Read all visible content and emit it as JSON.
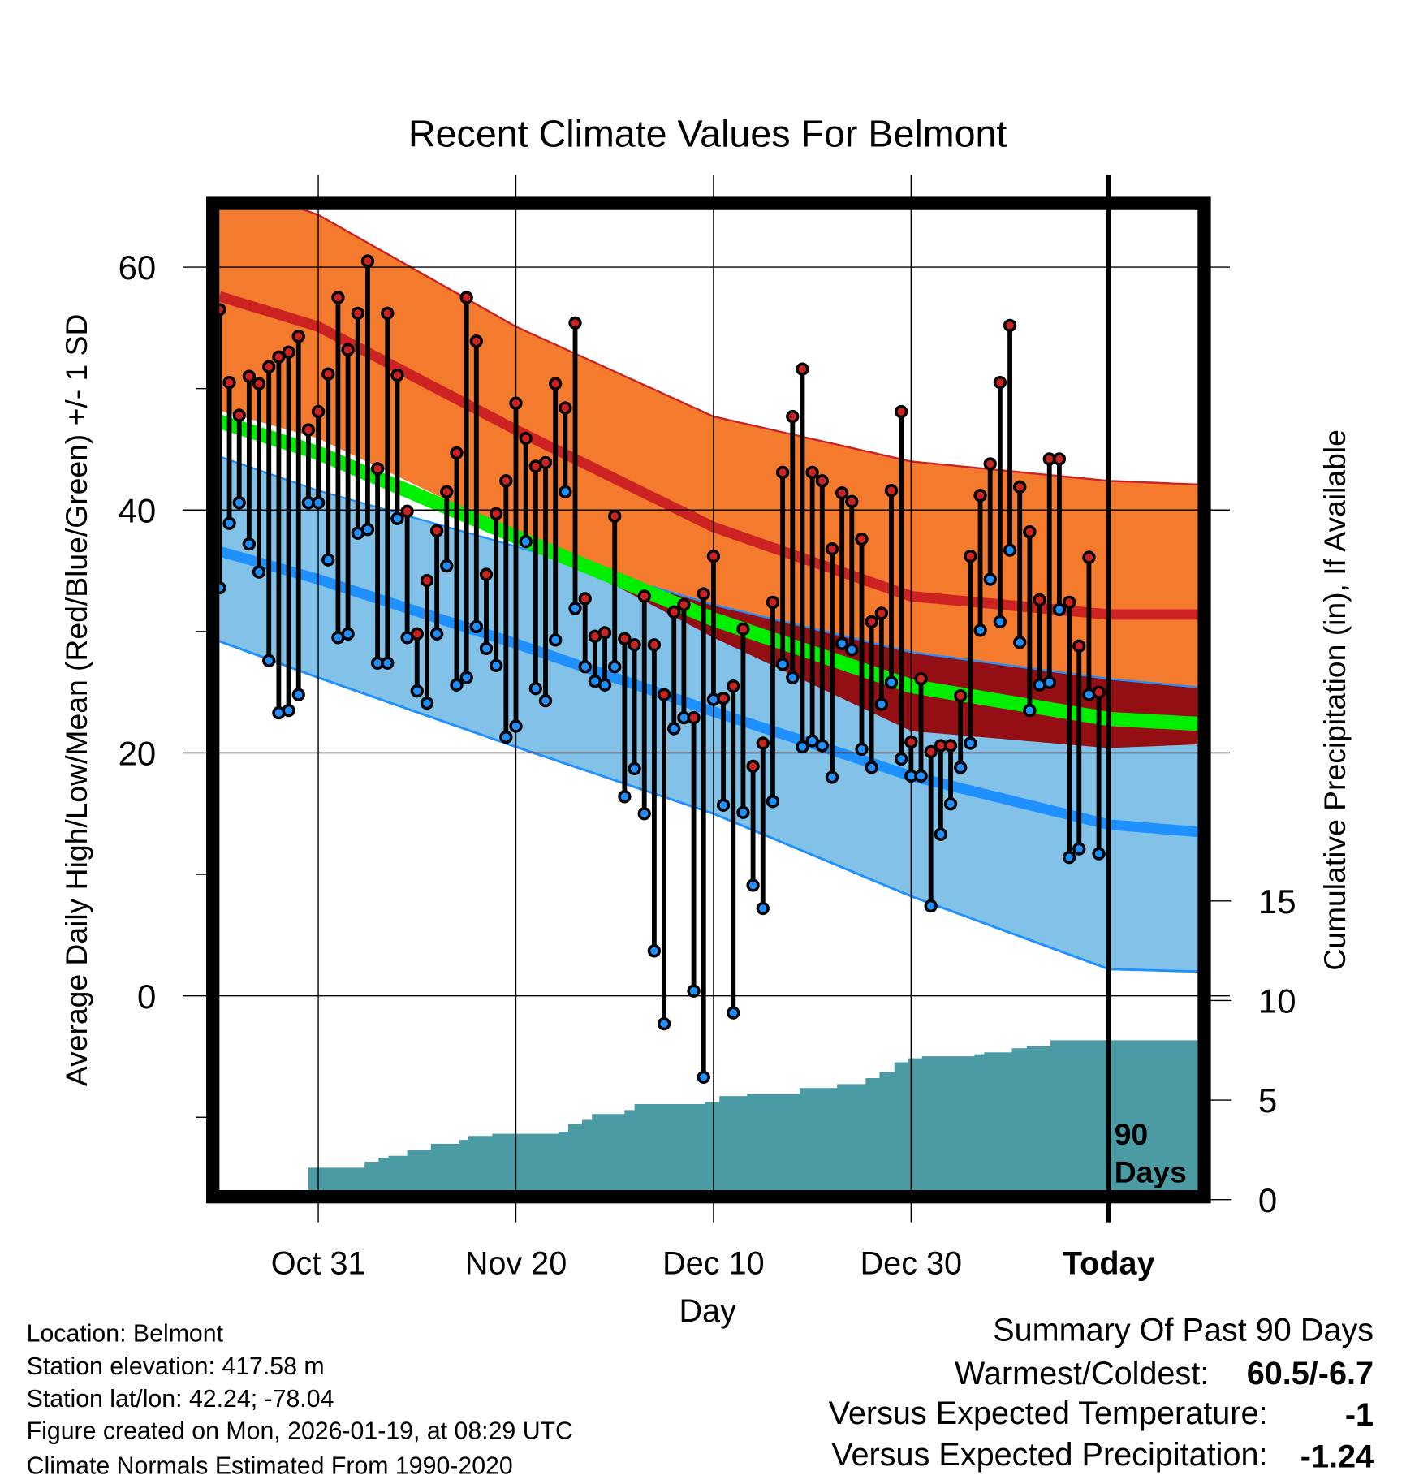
{
  "chart_data": {
    "type": "line",
    "title": "Recent Climate Values For Belmont",
    "xlabel": "Day",
    "ylabel": "Average Daily High/Low/Mean (Red/Blue/Green) +/- 1 SD",
    "y2label": "Cumulative Precipitation (in), If Available",
    "x_units": "days relative to today",
    "xlim": [
      -90,
      9
    ],
    "ylim": [
      -16.0,
      64.7
    ],
    "grid": true,
    "x_ticks": [
      {
        "value": -80,
        "label": "Oct 31"
      },
      {
        "value": -60,
        "label": "Nov 20"
      },
      {
        "value": -40,
        "label": "Dec 10"
      },
      {
        "value": -20,
        "label": "Dec 30"
      },
      {
        "value": 0,
        "label": "Today"
      }
    ],
    "y_ticks": [
      60,
      40,
      20,
      0
    ],
    "y_minor_ticks": [
      50,
      30,
      10,
      -10
    ],
    "precip_axis": {
      "ylim": [
        0,
        49.7
      ],
      "ticks": [
        15,
        10,
        5,
        0
      ]
    },
    "today_annotation": [
      "90",
      "Days"
    ],
    "colors": {
      "high_band": "#f47a2e",
      "high_mean": "#cc2222",
      "overlap": "#930f14",
      "mean": "#00ee00",
      "low_band": "#82c1e8",
      "low_mean": "#1e90ff",
      "precip": "#4a9ba3",
      "high_point": "#cc2222",
      "low_point": "#1e90ff"
    },
    "normals": {
      "x": [
        -90,
        -80,
        -60,
        -40,
        -20,
        0,
        9
      ],
      "high_plus_sd": [
        67.2,
        64.3,
        55.1,
        47.7,
        44.0,
        42.4,
        42.1
      ],
      "high_mean": [
        57.6,
        55.1,
        46.6,
        38.6,
        32.9,
        31.4,
        31.4
      ],
      "high_minus_sd": [
        48.2,
        45.9,
        38.1,
        29.5,
        21.8,
        20.4,
        20.7
      ],
      "mean": [
        47.3,
        44.7,
        37.8,
        31.0,
        25.5,
        22.8,
        22.4
      ],
      "low_plus_sd": [
        44.4,
        41.6,
        37.0,
        32.2,
        28.3,
        26.1,
        25.4
      ],
      "low_mean": [
        36.6,
        34.3,
        29.0,
        23.4,
        18.1,
        14.1,
        13.5
      ],
      "low_minus_sd": [
        29.2,
        26.2,
        20.5,
        15.0,
        8.2,
        2.2,
        2.0
      ]
    },
    "daily": {
      "x_start": -90,
      "highs": [
        56.5,
        50.5,
        47.8,
        51.0,
        50.4,
        51.8,
        52.6,
        53.0,
        54.3,
        46.6,
        48.1,
        51.2,
        57.5,
        53.2,
        56.2,
        60.5,
        43.4,
        56.2,
        51.1,
        39.9,
        29.8,
        34.2,
        38.3,
        41.5,
        44.7,
        57.5,
        53.9,
        34.7,
        39.7,
        42.4,
        48.8,
        45.9,
        43.6,
        43.9,
        50.4,
        48.4,
        55.4,
        32.7,
        29.6,
        29.9,
        39.5,
        29.4,
        28.9,
        32.9,
        28.9,
        24.8,
        31.6,
        32.2,
        22.9,
        33.1,
        36.2,
        24.5,
        25.5,
        30.2,
        18.9,
        20.8,
        32.4,
        43.1,
        47.7,
        51.6,
        43.1,
        42.4,
        36.8,
        41.4,
        40.7,
        37.6,
        30.8,
        31.5,
        41.6,
        48.1,
        20.9,
        26.1,
        20.1,
        20.6,
        20.6,
        24.7,
        36.2,
        41.2,
        43.8,
        50.5,
        55.2,
        41.9,
        38.2,
        32.6,
        44.2,
        44.2,
        32.4,
        28.8,
        36.1,
        25.0
      ],
      "lows": [
        33.6,
        38.9,
        40.6,
        37.2,
        34.9,
        27.6,
        23.3,
        23.5,
        24.8,
        40.6,
        40.6,
        35.9,
        29.5,
        29.8,
        38.1,
        38.4,
        27.4,
        27.4,
        39.3,
        29.5,
        25.1,
        24.1,
        29.8,
        35.4,
        25.6,
        26.2,
        30.4,
        28.6,
        27.2,
        21.3,
        22.2,
        37.4,
        25.3,
        24.3,
        29.3,
        41.5,
        31.9,
        27.1,
        25.9,
        25.6,
        27.1,
        16.4,
        18.7,
        15.0,
        3.7,
        -2.3,
        22.0,
        22.9,
        0.4,
        -6.7,
        24.4,
        15.7,
        -1.4,
        15.1,
        9.1,
        7.2,
        16.0,
        27.3,
        26.2,
        20.5,
        21.0,
        20.6,
        18.0,
        29.0,
        28.5,
        20.3,
        18.8,
        24.0,
        25.8,
        19.5,
        18.1,
        18.1,
        7.4,
        13.3,
        15.8,
        18.8,
        20.8,
        30.1,
        34.3,
        30.8,
        36.7,
        29.1,
        23.5,
        25.6,
        25.8,
        31.8,
        11.4,
        12.1,
        24.8,
        11.7
      ]
    },
    "precip_cumulative": {
      "x": [
        -90,
        -81.7,
        -81.0,
        -75.3,
        -73.9,
        -72.9,
        -71.0,
        -68.6,
        -65.7,
        -64.8,
        -62.4,
        -55.7,
        -54.7,
        -53.3,
        -52.3,
        -49.0,
        -48.0,
        -40.9,
        -39.4,
        -36.6,
        -31.3,
        -27.5,
        -24.6,
        -23.2,
        -21.7,
        -20.3,
        -18.9,
        -13.6,
        -12.6,
        -9.8,
        -8.3,
        -5.9,
        -5.0,
        9
      ],
      "values": [
        0,
        0,
        1.6,
        1.9,
        2.1,
        2.2,
        2.5,
        2.8,
        3.0,
        3.2,
        3.3,
        3.4,
        3.8,
        4.0,
        4.3,
        4.5,
        4.8,
        4.9,
        5.2,
        5.3,
        5.6,
        5.8,
        6.1,
        6.4,
        6.9,
        7.1,
        7.2,
        7.3,
        7.4,
        7.6,
        7.7,
        8.0,
        8.0,
        8.0
      ]
    }
  },
  "footer": {
    "location": "Location: Belmont",
    "elevation": "Station elevation: 417.58 m",
    "latlon": "Station lat/lon: 42.24; -78.04",
    "created": "Figure created on Mon, 2026-01-19, at 08:29 UTC",
    "normals": "Climate Normals Estimated From 1990-2020"
  },
  "summary": {
    "title": "Summary Of Past 90 Days",
    "warmest_coldest_label": "Warmest/Coldest:",
    "warmest_coldest_value": "60.5/-6.7",
    "temp_label": "Versus Expected Temperature:",
    "temp_value": "-1",
    "temp_color": "#1e90ff",
    "precip_label": "Versus Expected Precipitation:",
    "precip_value": "-1.24",
    "precip_color": "#a0522d"
  }
}
